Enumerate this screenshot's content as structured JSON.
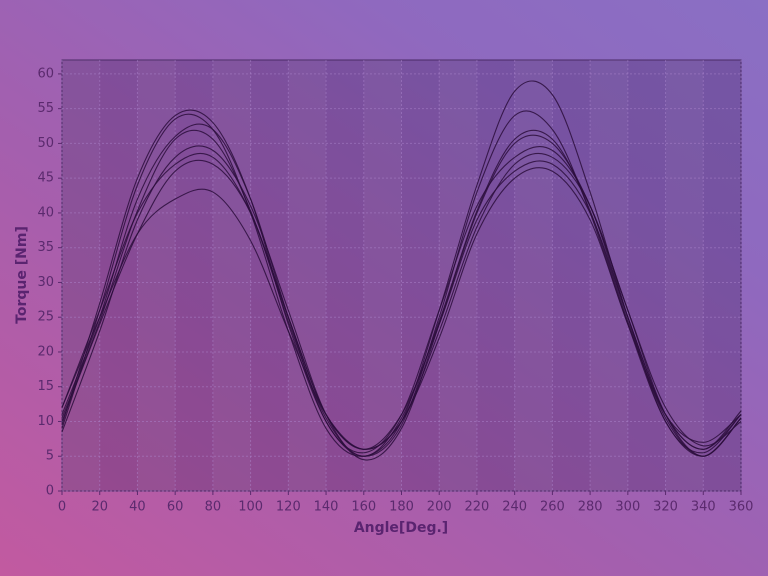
{
  "chart_data": {
    "type": "line",
    "xlabel": "Angle[Deg.]",
    "ylabel": "Torque [Nm]",
    "x": [
      0,
      20,
      40,
      60,
      80,
      100,
      120,
      140,
      160,
      180,
      200,
      220,
      240,
      260,
      280,
      300,
      320,
      340,
      360
    ],
    "xlim": [
      0,
      360
    ],
    "xticks": [
      0,
      20,
      40,
      60,
      80,
      100,
      120,
      140,
      160,
      180,
      200,
      220,
      240,
      260,
      280,
      300,
      320,
      340,
      360
    ],
    "ylim": [
      0,
      62
    ],
    "yticks": [
      0,
      5,
      10,
      15,
      20,
      25,
      30,
      35,
      40,
      45,
      50,
      55,
      60
    ],
    "grid": true,
    "series": [
      {
        "color": "#2b0e3c",
        "values": [
          10.5,
          24.4,
          40.3,
          50.6,
          50.6,
          40.3,
          24.4,
          10.5,
          5.0,
          10.5,
          24.4,
          40.3,
          50.6,
          50.6,
          40.3,
          24.4,
          10.5,
          5.0,
          10.5
        ]
      },
      {
        "color": "#2b0e3c",
        "values": [
          9,
          26,
          44,
          53.5,
          52,
          40,
          23,
          9,
          5,
          10,
          26,
          44,
          57.5,
          57,
          43,
          25,
          10,
          5.5,
          11
        ]
      },
      {
        "color": "#2b0e3c",
        "values": [
          12,
          25,
          37,
          42,
          43,
          36,
          23,
          11,
          6,
          10,
          22,
          37,
          45,
          46,
          39,
          24,
          11,
          7,
          11
        ]
      },
      {
        "color": "#2b0e3c",
        "values": [
          8.5,
          23,
          39,
          48,
          49,
          41,
          26,
          11,
          4.5,
          9,
          24,
          40,
          50,
          50,
          41,
          26,
          11,
          5,
          10.5
        ]
      },
      {
        "color": "#2b0e3c",
        "values": [
          11,
          25,
          42,
          51,
          52,
          42,
          25,
          10,
          5.5,
          11,
          26,
          41,
          48,
          49,
          41,
          25,
          11,
          6,
          11
        ]
      },
      {
        "color": "#2b0e3c",
        "values": [
          10,
          24,
          37,
          46,
          47,
          40,
          25,
          11,
          6,
          10,
          23,
          38,
          47,
          48,
          41,
          26,
          12,
          6.5,
          10
        ]
      },
      {
        "color": "#2b0e3c",
        "values": [
          9.5,
          27,
          45,
          54,
          53,
          42,
          24,
          10,
          5,
          9.5,
          25,
          43,
          54,
          52,
          40,
          24,
          10,
          5,
          10.5
        ]
      },
      {
        "color": "#2b0e3c",
        "values": [
          12,
          26,
          40,
          47,
          48,
          40,
          25,
          11,
          6,
          11,
          24,
          39,
          46,
          47,
          40,
          25,
          11,
          6,
          11.5
        ]
      }
    ]
  }
}
